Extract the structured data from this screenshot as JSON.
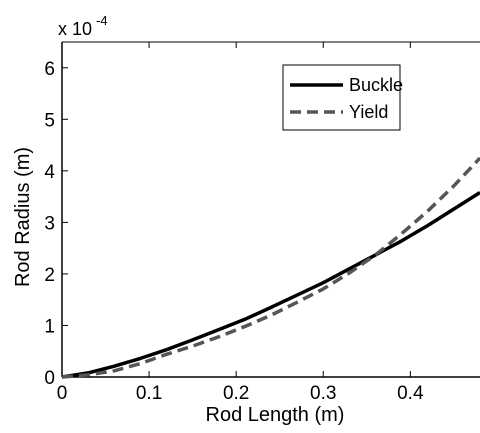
{
  "chart_data": {
    "type": "line",
    "title": "",
    "xlabel": "Rod Length (m)",
    "ylabel": "Rod Radius (m)",
    "y_exponent": {
      "base": "x 10",
      "power": "-4"
    },
    "xlim": [
      0,
      0.48
    ],
    "ylim": [
      0,
      6.5
    ],
    "x_ticks": [
      0,
      0.1,
      0.2,
      0.3,
      0.4
    ],
    "x_tick_labels": [
      "0",
      "0.1",
      "0.2",
      "0.3",
      "0.4"
    ],
    "y_ticks": [
      0,
      1,
      2,
      3,
      4,
      5,
      6
    ],
    "y_tick_labels": [
      "0",
      "1",
      "2",
      "3",
      "4",
      "5",
      "6"
    ],
    "grid": false,
    "legend_position": "top-right",
    "series": [
      {
        "name": "Buckle",
        "style": "solid",
        "color": "#000000",
        "x": [
          0,
          0.03,
          0.06,
          0.09,
          0.12,
          0.15,
          0.18,
          0.21,
          0.24,
          0.27,
          0.3,
          0.33,
          0.36,
          0.39,
          0.42,
          0.45,
          0.48
        ],
        "values": [
          0,
          0.08,
          0.21,
          0.36,
          0.53,
          0.72,
          0.92,
          1.12,
          1.35,
          1.59,
          1.83,
          2.1,
          2.37,
          2.64,
          2.94,
          3.26,
          3.58
        ]
      },
      {
        "name": "Yield",
        "style": "dashed",
        "color": "#555555",
        "x": [
          0,
          0.03,
          0.06,
          0.09,
          0.12,
          0.15,
          0.18,
          0.21,
          0.24,
          0.27,
          0.3,
          0.33,
          0.36,
          0.39,
          0.42,
          0.45,
          0.48
        ],
        "values": [
          0,
          0.04,
          0.12,
          0.26,
          0.44,
          0.6,
          0.78,
          0.98,
          1.2,
          1.45,
          1.71,
          2.02,
          2.37,
          2.78,
          3.22,
          3.71,
          4.25
        ]
      }
    ]
  }
}
